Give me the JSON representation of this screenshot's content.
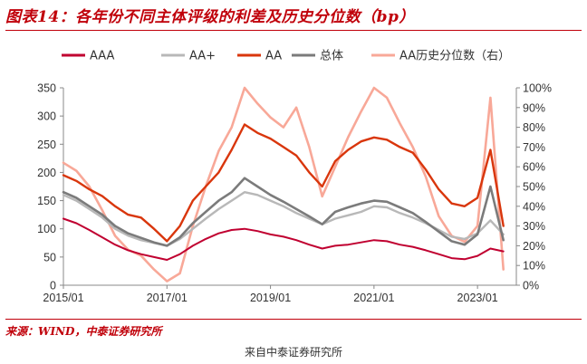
{
  "title": "图表14：各年份不同主体评级的利差及历史分位数（bp）",
  "source": "来源：WIND，中泰证券研究所",
  "caption": "来自中泰证券研究所",
  "chart_data": {
    "type": "line",
    "x": [
      "2015/01",
      "2015/04",
      "2015/07",
      "2015/10",
      "2016/01",
      "2016/04",
      "2016/07",
      "2016/10",
      "2017/01",
      "2017/04",
      "2017/07",
      "2017/10",
      "2018/01",
      "2018/04",
      "2018/07",
      "2018/10",
      "2019/01",
      "2019/04",
      "2019/07",
      "2019/10",
      "2020/01",
      "2020/04",
      "2020/07",
      "2020/10",
      "2021/01",
      "2021/04",
      "2021/07",
      "2021/10",
      "2022/01",
      "2022/04",
      "2022/07",
      "2022/10",
      "2023/01",
      "2023/04",
      "2023/07"
    ],
    "xtick_labels": [
      "2015/01",
      "2017/01",
      "2019/01",
      "2021/01",
      "2023/01"
    ],
    "y_left_ticks": [
      "0",
      "50",
      "100",
      "150",
      "200",
      "250",
      "300",
      "350"
    ],
    "y_right_ticks": [
      "0%",
      "10%",
      "20%",
      "30%",
      "40%",
      "50%",
      "60%",
      "70%",
      "80%",
      "90%",
      "100%"
    ],
    "ylim_left": [
      0,
      350
    ],
    "ylim_right": [
      0,
      1
    ],
    "legend": "top",
    "grid": false,
    "series": [
      {
        "name": "AAA",
        "axis": "left",
        "color": "#c00030",
        "values": [
          118,
          110,
          98,
          85,
          72,
          62,
          55,
          50,
          45,
          55,
          70,
          82,
          92,
          98,
          100,
          96,
          90,
          86,
          80,
          72,
          65,
          70,
          72,
          76,
          80,
          78,
          72,
          68,
          62,
          55,
          48,
          46,
          52,
          65,
          60
        ]
      },
      {
        "name": "AA+",
        "axis": "left",
        "color": "#b8b8b8",
        "values": [
          160,
          150,
          135,
          120,
          100,
          88,
          80,
          75,
          70,
          82,
          100,
          118,
          135,
          150,
          165,
          160,
          150,
          140,
          128,
          118,
          108,
          118,
          124,
          130,
          140,
          138,
          128,
          120,
          110,
          98,
          86,
          82,
          92,
          115,
          90
        ]
      },
      {
        "name": "AA",
        "axis": "left",
        "color": "#d9360c",
        "values": [
          195,
          185,
          170,
          158,
          140,
          125,
          120,
          100,
          78,
          105,
          150,
          175,
          200,
          240,
          285,
          270,
          260,
          245,
          230,
          200,
          175,
          220,
          240,
          255,
          262,
          258,
          245,
          235,
          205,
          170,
          145,
          140,
          155,
          240,
          105
        ]
      },
      {
        "name": "总体",
        "axis": "left",
        "color": "#7b7b7b",
        "values": [
          165,
          155,
          140,
          125,
          105,
          92,
          84,
          76,
          70,
          85,
          110,
          130,
          150,
          165,
          190,
          175,
          160,
          148,
          135,
          122,
          108,
          130,
          138,
          145,
          150,
          148,
          138,
          128,
          112,
          95,
          78,
          72,
          90,
          175,
          80
        ]
      },
      {
        "name": "AA历史分位数（右）",
        "axis": "right",
        "color": "#f8a898",
        "values": [
          0.62,
          0.58,
          0.5,
          0.38,
          0.25,
          0.18,
          0.15,
          0.08,
          0.02,
          0.06,
          0.3,
          0.5,
          0.68,
          0.8,
          1.0,
          0.92,
          0.85,
          0.8,
          0.9,
          0.7,
          0.45,
          0.6,
          0.75,
          0.88,
          1.0,
          0.95,
          0.82,
          0.7,
          0.55,
          0.35,
          0.25,
          0.22,
          0.3,
          0.95,
          0.08
        ]
      }
    ]
  }
}
